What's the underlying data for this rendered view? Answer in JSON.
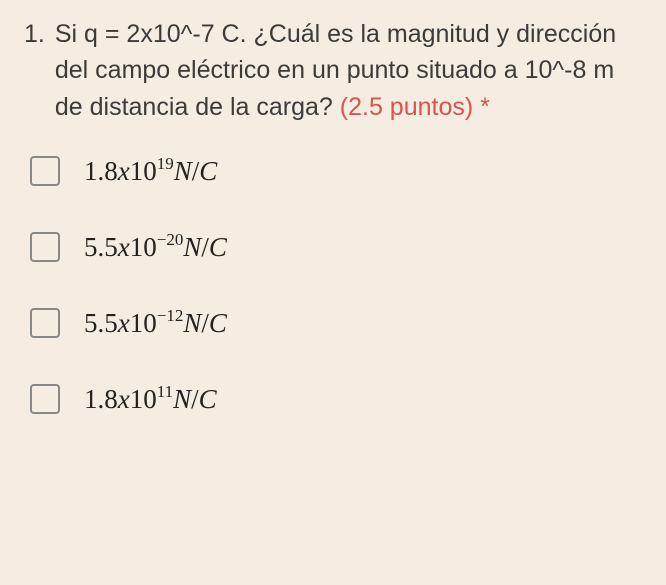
{
  "question": {
    "number": "1.",
    "text": "Si q = 2x10^-7 C. ¿Cuál es la magnitud y dirección del campo eléctrico en un punto situado a 10^-8 m de distancia de la carga? ",
    "points_label": "(2.5 puntos)",
    "required_marker": " *"
  },
  "options": [
    {
      "coefficient": "1.8",
      "x": "x",
      "base": "10",
      "exponent": "19",
      "unit_n": "N",
      "slash": "/",
      "unit_c": "C"
    },
    {
      "coefficient": "5.5",
      "x": "x",
      "base": "10",
      "exponent": "−20",
      "unit_n": "N",
      "slash": "/",
      "unit_c": "C"
    },
    {
      "coefficient": "5.5",
      "x": "x",
      "base": "10",
      "exponent": "−12",
      "unit_n": "N",
      "slash": "/",
      "unit_c": "C"
    },
    {
      "coefficient": "1.8",
      "x": "x",
      "base": "10",
      "exponent": "11",
      "unit_n": "N",
      "slash": "/",
      "unit_c": "C"
    }
  ],
  "colors": {
    "background": "#f5ede1",
    "text": "#3b3b3b",
    "accent": "#d9544f",
    "checkbox_border": "#888",
    "option_text": "#222"
  }
}
